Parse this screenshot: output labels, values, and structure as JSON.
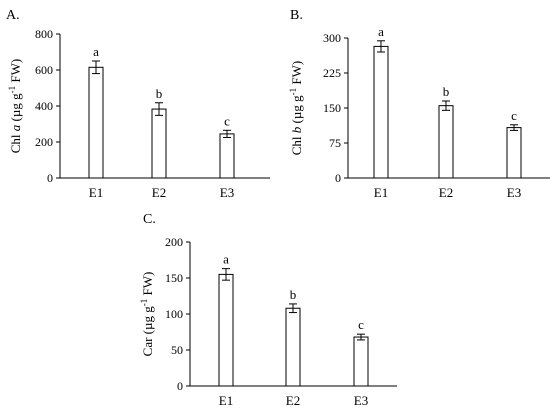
{
  "chart_data": [
    {
      "type": "bar",
      "panel_label": "A.",
      "ylabel_parts": [
        "Chl ",
        "a",
        " (µg g",
        "-1",
        " FW)"
      ],
      "categories": [
        "E1",
        "E2",
        "E3"
      ],
      "values": [
        615,
        383,
        245
      ],
      "errors": [
        35,
        35,
        20
      ],
      "significance": [
        "a",
        "b",
        "c"
      ],
      "ylim": [
        0,
        800
      ],
      "yticks": [
        0,
        200,
        400,
        600,
        800
      ]
    },
    {
      "type": "bar",
      "panel_label": "B.",
      "ylabel_parts": [
        "Chl ",
        "b",
        " (µg g",
        "-1",
        " FW)"
      ],
      "categories": [
        "E1",
        "E2",
        "E3"
      ],
      "values": [
        282,
        155,
        108
      ],
      "errors": [
        12,
        10,
        6
      ],
      "significance": [
        "a",
        "b",
        "c"
      ],
      "ylim": [
        0,
        300
      ],
      "yticks": [
        0,
        75,
        150,
        225,
        300
      ]
    },
    {
      "type": "bar",
      "panel_label": "C.",
      "ylabel_parts": [
        "Car (µg g",
        "-1",
        " FW)"
      ],
      "categories": [
        "E1",
        "E2",
        "E3"
      ],
      "values": [
        155,
        108,
        68
      ],
      "errors": [
        8,
        6,
        4
      ],
      "significance": [
        "a",
        "b",
        "c"
      ],
      "ylim": [
        0,
        200
      ],
      "yticks": [
        0,
        50,
        100,
        150,
        200
      ]
    }
  ]
}
